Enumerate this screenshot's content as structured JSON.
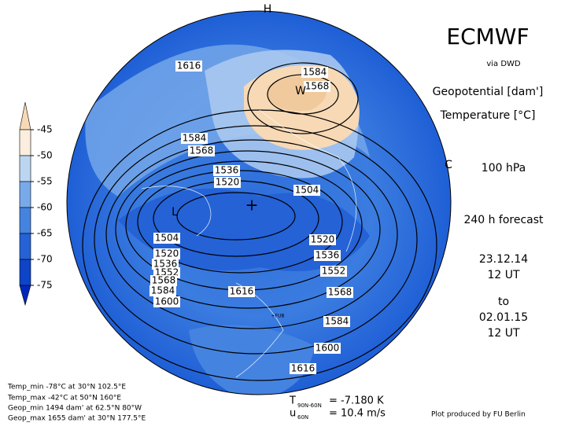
{
  "header": {
    "title": "ECMWF",
    "source": "via DWD",
    "field1": "Geopotential [dam']",
    "field2": "Temperature [°C]",
    "level": "100 hPa",
    "forecast": "240 h forecast",
    "init_date": "23.12.14",
    "init_time": "12 UT",
    "to": "to",
    "valid_date": "02.01.15",
    "valid_time": "12 UT"
  },
  "legend": {
    "levels": [
      -45,
      -50,
      -55,
      -60,
      -65,
      -70,
      -75
    ],
    "colors": [
      "#f7d9b6",
      "#fbeede",
      "#bcd6f2",
      "#78aaea",
      "#4583e0",
      "#2462d6",
      "#0d44c8",
      "#0028bd"
    ]
  },
  "map": {
    "markers": [
      "H",
      "W",
      "L",
      "+",
      "C",
      "+FUB"
    ],
    "contour_labels": [
      1616,
      1584,
      1568,
      1584,
      1568,
      1536,
      1520,
      1504,
      1504,
      1520,
      1536,
      1552,
      1568,
      1584,
      1600,
      1616,
      1520,
      1536,
      1552,
      1568,
      1584,
      1600,
      1616
    ]
  },
  "stats": [
    "Temp_min -78°C at 30°N 102.5°E",
    "Temp_max -42°C at 50°N 160°E",
    "Geop_min 1494 dam' at 62.5°N 80°W",
    "Geop_max 1655 dam' at 30°N 177.5°E"
  ],
  "diagnostics": {
    "t_symbol": "T",
    "t_sub": "90N-60N",
    "t_value": "= -7.180 K",
    "u_symbol": "u",
    "u_sub": "60N",
    "u_value": "= 10.4 m/s"
  },
  "footer": "Plot produced by FU Berlin"
}
